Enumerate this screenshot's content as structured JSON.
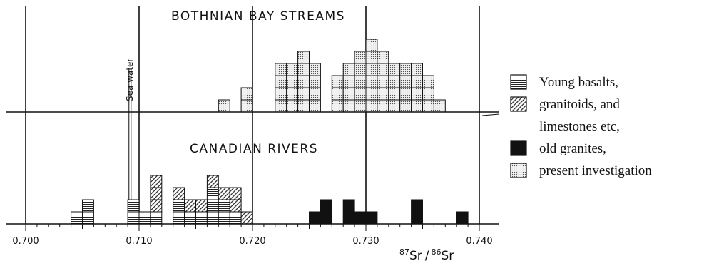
{
  "chart_data": {
    "type": "bar",
    "x_axis": {
      "label_mass1": "87",
      "label_el1": "Sr",
      "label_sep": "/",
      "label_mass2": "86",
      "label_el2": "Sr",
      "range": [
        0.699,
        0.741
      ],
      "ticks": [
        "0.700",
        "0.710",
        "0.720",
        "0.730",
        "0.740"
      ],
      "bin_width": 0.001
    },
    "sea_water": {
      "label": "Sea water",
      "value": 0.7092
    },
    "panels": [
      {
        "title": "BOTHNIAN BAY STREAMS",
        "series": [
          {
            "legend": "present investigation",
            "pattern": "dots",
            "bins": [
              [
                0.7175,
                1
              ],
              [
                0.7195,
                2
              ],
              [
                0.7225,
                4
              ],
              [
                0.7235,
                4
              ],
              [
                0.7245,
                5
              ],
              [
                0.7255,
                4
              ],
              [
                0.7275,
                3
              ],
              [
                0.7285,
                4
              ],
              [
                0.7295,
                5
              ],
              [
                0.7305,
                6
              ],
              [
                0.7315,
                5
              ],
              [
                0.7325,
                4
              ],
              [
                0.7335,
                4
              ],
              [
                0.7345,
                4
              ],
              [
                0.7355,
                3
              ],
              [
                0.7365,
                1
              ]
            ]
          }
        ]
      },
      {
        "title": "CANADIAN RIVERS",
        "series": [
          {
            "legend": "Young basalts,",
            "pattern": "horizontal",
            "bins": [
              [
                0.7045,
                1
              ],
              [
                0.7055,
                2
              ],
              [
                0.7095,
                2
              ],
              [
                0.7105,
                1
              ],
              [
                0.7115,
                1
              ],
              [
                0.7135,
                2
              ],
              [
                0.7145,
                1
              ],
              [
                0.7155,
                1
              ],
              [
                0.7165,
                3
              ],
              [
                0.7175,
                2
              ],
              [
                0.7185,
                1
              ]
            ]
          },
          {
            "legend": "granitoids, and limestones etc,",
            "pattern": "diagonal",
            "bins": [
              [
                0.7115,
                3
              ],
              [
                0.7135,
                1
              ],
              [
                0.7145,
                1
              ],
              [
                0.7155,
                1
              ],
              [
                0.7165,
                1
              ],
              [
                0.7175,
                1
              ],
              [
                0.7185,
                2
              ],
              [
                0.7195,
                1
              ]
            ]
          },
          {
            "legend": "old granites,",
            "pattern": "solid",
            "bins": [
              [
                0.7255,
                1
              ],
              [
                0.7265,
                2
              ],
              [
                0.7285,
                2
              ],
              [
                0.7295,
                1
              ],
              [
                0.7305,
                1
              ],
              [
                0.7345,
                2
              ],
              [
                0.7385,
                1
              ]
            ]
          }
        ]
      }
    ],
    "legend": {
      "placement": "right",
      "entries": [
        {
          "pattern": "horizontal",
          "text": "Young basalts,"
        },
        {
          "pattern": "diagonal",
          "text": "granitoids, and"
        },
        {
          "pattern": null,
          "text": "limestones etc,"
        },
        {
          "pattern": "solid",
          "text": "old granites,"
        },
        {
          "pattern": "dots",
          "text": "present investigation"
        }
      ]
    }
  }
}
